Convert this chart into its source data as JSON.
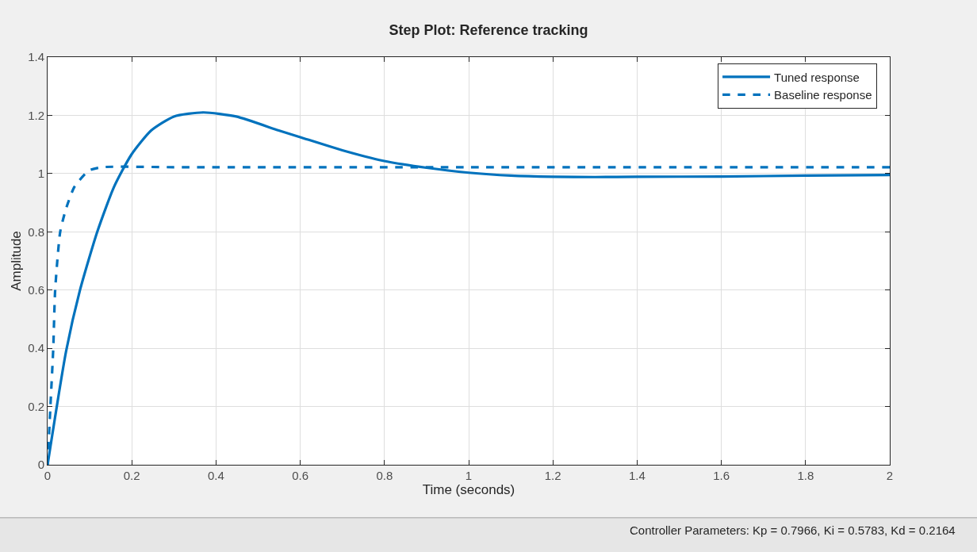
{
  "chart_data": {
    "type": "line",
    "title": "Step Plot: Reference tracking",
    "xlabel": "Time (seconds)",
    "ylabel": "Amplitude",
    "annotations": [
      "Controller Parameters: Kp = 0.7966, Ki = 0.5783, Kd = 0.2164"
    ],
    "xlim": [
      0,
      2
    ],
    "xticks": [
      0,
      0.2,
      0.4,
      0.6,
      0.8,
      1,
      1.2,
      1.4,
      1.6,
      1.8,
      2
    ],
    "ylim": [
      0,
      1.4
    ],
    "yticks": [
      0,
      0.2,
      0.4,
      0.6,
      0.8,
      1,
      1.2,
      1.4
    ],
    "grid": true,
    "legend": "top right",
    "marker": "none",
    "series": [
      {
        "name": "Tuned response",
        "color": "#0072bd",
        "line_style": "solid",
        "x": [
          0,
          0.044,
          0.077,
          0.118,
          0.158,
          0.199,
          0.246,
          0.3,
          0.37,
          0.448,
          0.549,
          0.6,
          0.7,
          0.797,
          0.9,
          1.0,
          1.1,
          1.2,
          1.3,
          1.4,
          1.6,
          1.8,
          2.0
        ],
        "values": [
          0,
          0.39,
          0.6,
          0.8,
          0.955,
          1.065,
          1.148,
          1.196,
          1.21,
          1.196,
          1.148,
          1.125,
          1.08,
          1.044,
          1.02,
          1.003,
          0.993,
          0.989,
          0.988,
          0.989,
          0.99,
          0.993,
          0.995
        ]
      },
      {
        "name": "Baseline response",
        "color": "#0072bd",
        "line_style": "dashed",
        "x": [
          0,
          0.0067,
          0.0135,
          0.018,
          0.03,
          0.044,
          0.064,
          0.098,
          0.131,
          0.3,
          1.0,
          2.0
        ],
        "values": [
          0,
          0.2,
          0.4,
          0.6,
          0.8,
          0.88,
          0.955,
          1.01,
          1.022,
          1.022,
          1.022,
          1.022
        ]
      }
    ]
  }
}
